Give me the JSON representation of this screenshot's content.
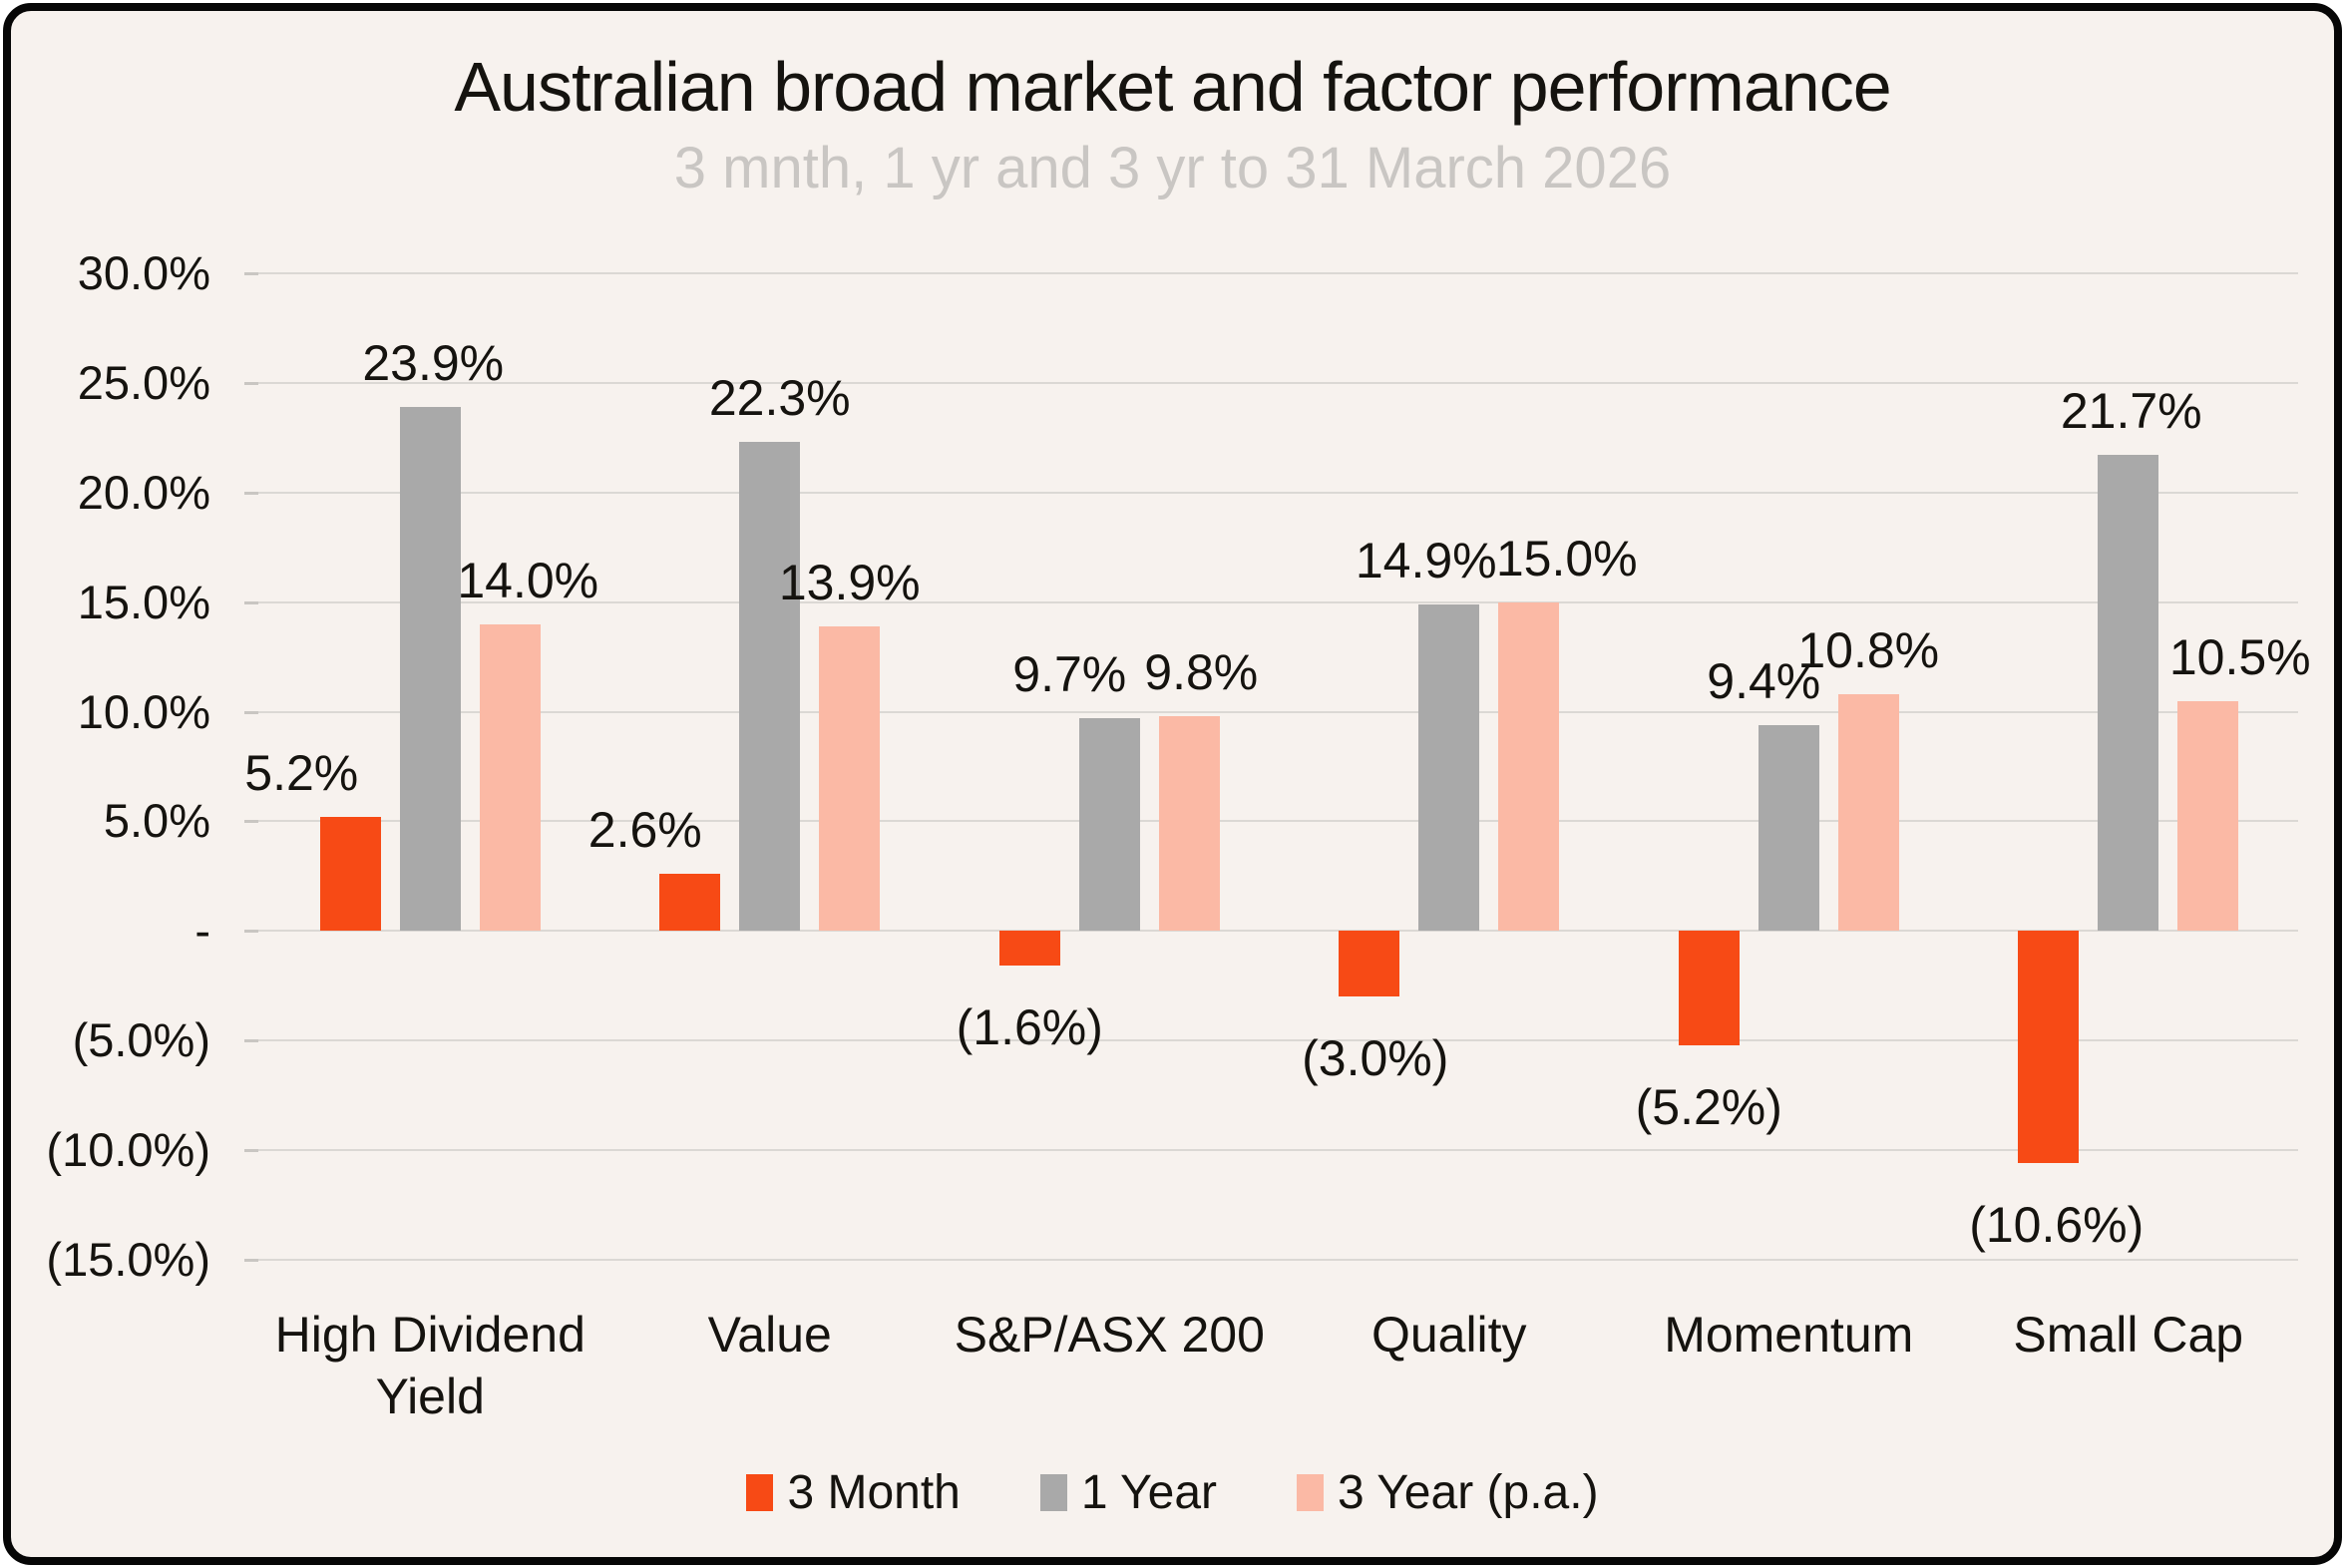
{
  "colors": {
    "background": "#F7F2EE",
    "card_border": "#060606",
    "text": "#15130F",
    "subtitle_text": "#C9C6C3",
    "gridline": "#DBD8D4",
    "bar_3_month": "#F74A15",
    "bar_1_year": "#A9A9A9",
    "bar_3_year_pa": "#FBB9A5"
  },
  "chart_data": {
    "type": "bar",
    "title": "Australian broad market and factor performance",
    "subtitle": "3 mnth, 1 yr and 3 yr to 31 March 2026",
    "categories": [
      "High Dividend Yield",
      "Value",
      "S&P/ASX 200",
      "Quality",
      "Momentum",
      "Small Cap"
    ],
    "series": [
      {
        "name": "3 Month",
        "color": "#F74A15",
        "values": [
          5.2,
          2.6,
          -1.6,
          -3.0,
          -5.2,
          -10.6
        ],
        "labels": [
          "5.2%",
          "2.6%",
          "(1.6%)",
          "(3.0%)",
          "(5.2%)",
          "(10.6%)"
        ],
        "label_dx": [
          -49,
          -45,
          0,
          6,
          0,
          8
        ]
      },
      {
        "name": "1 Year",
        "color": "#A9A9A9",
        "values": [
          23.9,
          22.3,
          9.7,
          14.9,
          9.4,
          21.7
        ],
        "labels": [
          "23.9%",
          "22.3%",
          "9.7%",
          "14.9%",
          "9.4%",
          "21.7%"
        ],
        "label_dx": [
          3,
          10,
          -40,
          -23,
          -25,
          3
        ]
      },
      {
        "name": "3 Year (p.a.)",
        "color": "#FBB9A5",
        "values": [
          14.0,
          13.9,
          9.8,
          15.0,
          10.8,
          10.5
        ],
        "labels": [
          "14.0%",
          "13.9%",
          "9.8%",
          "15.0%",
          "10.8%",
          "10.5%"
        ],
        "label_dx": [
          18,
          0,
          12,
          38,
          0,
          32
        ]
      }
    ],
    "y_axis": {
      "min": -15,
      "max": 30,
      "grid": true,
      "ticks": [
        {
          "value": 30,
          "label": "30.0%"
        },
        {
          "value": 25,
          "label": "25.0%"
        },
        {
          "value": 20,
          "label": "20.0%"
        },
        {
          "value": 15,
          "label": "15.0%"
        },
        {
          "value": 10,
          "label": "10.0%"
        },
        {
          "value": 5,
          "label": "5.0%"
        },
        {
          "value": 0,
          "label": "-"
        },
        {
          "value": -5,
          "label": "(5.0%)"
        },
        {
          "value": -10,
          "label": "(10.0%)"
        },
        {
          "value": -15,
          "label": "(15.0%)"
        }
      ]
    },
    "legend_position": "bottom"
  }
}
